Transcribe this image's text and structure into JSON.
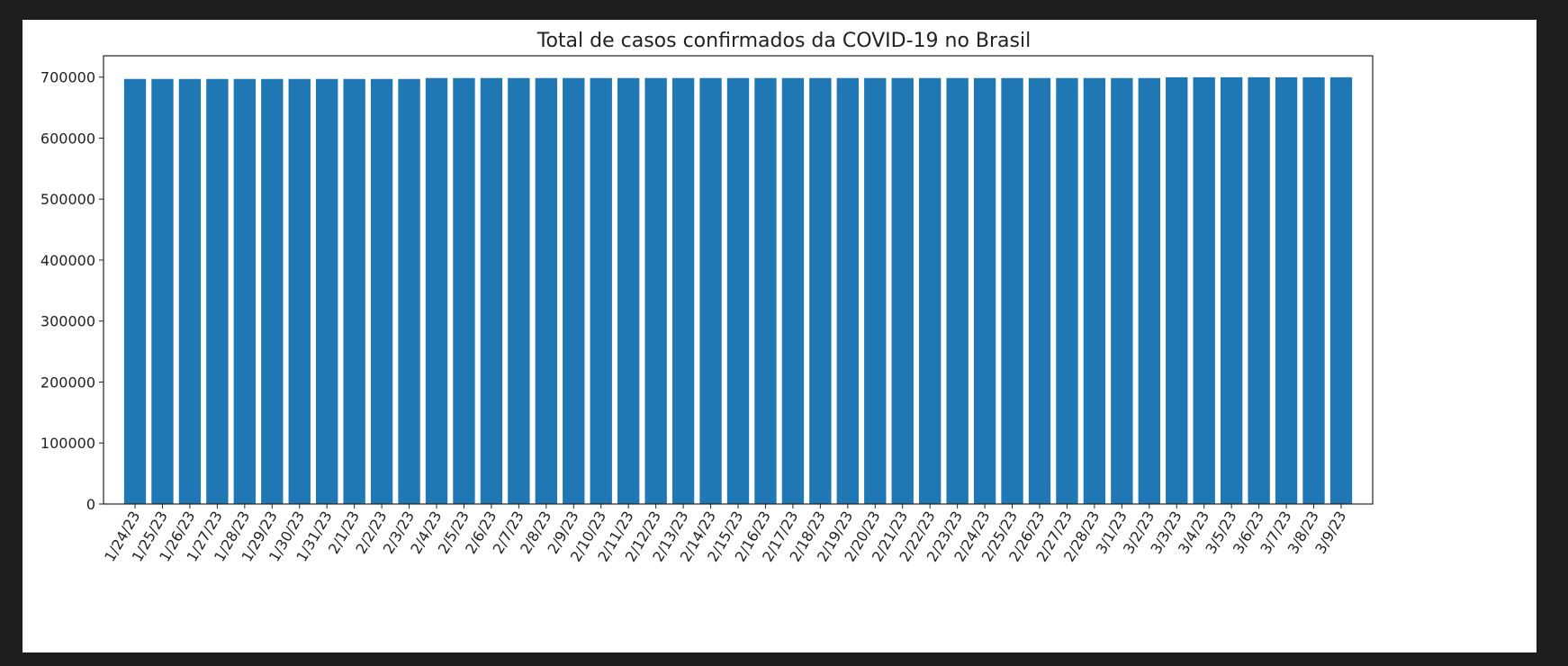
{
  "chart_data": {
    "type": "bar",
    "title": "Total de casos confirmados da COVID-19 no Brasil",
    "xlabel": "",
    "ylabel": "",
    "ylim": [
      0,
      735000
    ],
    "yticks": [
      0,
      100000,
      200000,
      300000,
      400000,
      500000,
      600000,
      700000
    ],
    "grid": false,
    "bar_color": "#1f77b4",
    "categories": [
      "1/24/23",
      "1/25/23",
      "1/26/23",
      "1/27/23",
      "1/28/23",
      "1/29/23",
      "1/30/23",
      "1/31/23",
      "2/1/23",
      "2/2/23",
      "2/3/23",
      "2/4/23",
      "2/5/23",
      "2/6/23",
      "2/7/23",
      "2/8/23",
      "2/9/23",
      "2/10/23",
      "2/11/23",
      "2/12/23",
      "2/13/23",
      "2/14/23",
      "2/15/23",
      "2/16/23",
      "2/17/23",
      "2/18/23",
      "2/19/23",
      "2/20/23",
      "2/21/23",
      "2/22/23",
      "2/23/23",
      "2/24/23",
      "2/25/23",
      "2/26/23",
      "2/27/23",
      "2/28/23",
      "3/1/23",
      "3/2/23",
      "3/3/23",
      "3/4/23",
      "3/5/23",
      "3/6/23",
      "3/7/23",
      "3/8/23",
      "3/9/23"
    ],
    "values": [
      697000,
      697000,
      697000,
      697000,
      697000,
      697000,
      697000,
      697000,
      697000,
      697000,
      697000,
      698500,
      698500,
      698500,
      698500,
      698500,
      698500,
      698500,
      698500,
      698500,
      698500,
      698500,
      698500,
      698500,
      698500,
      698500,
      698500,
      698500,
      698500,
      698500,
      698500,
      698500,
      698500,
      698500,
      698500,
      698500,
      698500,
      698500,
      699800,
      699800,
      699800,
      699800,
      699800,
      699800,
      699800
    ]
  }
}
